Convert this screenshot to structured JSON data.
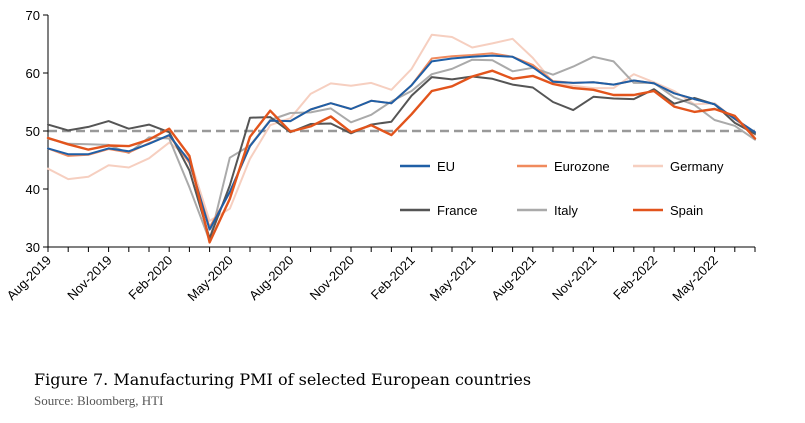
{
  "caption": {
    "title": "Figure 7. Manufacturing PMI of selected European countries",
    "source": "Source: Bloomberg, HTI"
  },
  "chart_data": {
    "type": "line",
    "title": "Manufacturing PMI of selected European countries",
    "xlabel": "",
    "ylabel": "",
    "ylim": [
      30,
      70
    ],
    "yticks": [
      30,
      40,
      50,
      60,
      70
    ],
    "reference_line": 50,
    "x": [
      "Aug-2019",
      "Sep-2019",
      "Oct-2019",
      "Nov-2019",
      "Dec-2019",
      "Jan-2020",
      "Feb-2020",
      "Mar-2020",
      "Apr-2020",
      "May-2020",
      "Jun-2020",
      "Jul-2020",
      "Aug-2020",
      "Sep-2020",
      "Oct-2020",
      "Nov-2020",
      "Dec-2020",
      "Jan-2021",
      "Feb-2021",
      "Mar-2021",
      "Apr-2021",
      "May-2021",
      "Jun-2021",
      "Jul-2021",
      "Aug-2021",
      "Sep-2021",
      "Oct-2021",
      "Nov-2021",
      "Dec-2021",
      "Jan-2022",
      "Feb-2022",
      "Mar-2022",
      "Apr-2022",
      "May-2022",
      "Jun-2022",
      "Jul-2022"
    ],
    "x_tick_labels": [
      "Aug-2019",
      "Nov-2019",
      "Feb-2020",
      "May-2020",
      "Aug-2020",
      "Nov-2020",
      "Feb-2021",
      "May-2021",
      "Aug-2021",
      "Nov-2021",
      "Feb-2022",
      "May-2022"
    ],
    "legend_position": "lower-right",
    "series": [
      {
        "name": "EU",
        "color": "#1f5fa6",
        "values": [
          47.0,
          46.0,
          46.0,
          47.0,
          46.5,
          47.8,
          49.3,
          44.8,
          33.0,
          39.5,
          47.4,
          51.8,
          51.7,
          53.7,
          54.8,
          53.8,
          55.2,
          54.8,
          57.9,
          62.0,
          62.5,
          62.8,
          63.0,
          62.8,
          61.0,
          58.5,
          58.3,
          58.4,
          58.0,
          58.7,
          58.2,
          56.5,
          55.5,
          54.6,
          52.1,
          49.8
        ]
      },
      {
        "name": "Eurozone",
        "color": "#f08a5d",
        "values": [
          47.0,
          45.7,
          45.9,
          46.9,
          46.3,
          47.9,
          49.2,
          44.5,
          33.4,
          39.4,
          47.4,
          51.8,
          51.7,
          53.7,
          54.8,
          53.8,
          55.2,
          54.8,
          57.9,
          62.5,
          62.9,
          63.1,
          63.4,
          62.8,
          61.4,
          58.6,
          58.3,
          58.4,
          58.0,
          58.7,
          58.2,
          56.5,
          55.5,
          54.6,
          52.1,
          49.8
        ]
      },
      {
        "name": "Germany",
        "color": "#f6cfc0",
        "values": [
          43.5,
          41.7,
          42.1,
          44.1,
          43.7,
          45.3,
          48.0,
          45.4,
          34.5,
          36.6,
          45.2,
          51.0,
          52.2,
          56.4,
          58.2,
          57.8,
          58.3,
          57.1,
          60.7,
          66.6,
          66.2,
          64.4,
          65.1,
          65.9,
          62.6,
          58.4,
          57.8,
          57.4,
          57.4,
          59.8,
          58.4,
          56.9,
          54.6,
          54.8,
          52.0,
          49.3
        ]
      },
      {
        "name": "France",
        "color": "#555555",
        "values": [
          51.1,
          50.1,
          50.7,
          51.7,
          50.4,
          51.1,
          49.8,
          43.2,
          31.5,
          40.6,
          52.3,
          52.4,
          49.8,
          51.2,
          51.3,
          49.6,
          51.1,
          51.6,
          56.1,
          59.3,
          58.9,
          59.4,
          59.0,
          58.0,
          57.5,
          55.0,
          53.6,
          55.9,
          55.6,
          55.5,
          57.2,
          54.7,
          55.7,
          54.6,
          51.4,
          49.5
        ]
      },
      {
        "name": "Italy",
        "color": "#aaaaaa",
        "values": [
          48.7,
          47.8,
          47.7,
          47.6,
          46.2,
          48.9,
          48.7,
          40.3,
          31.1,
          45.4,
          47.5,
          51.9,
          53.1,
          53.2,
          53.9,
          51.5,
          52.8,
          55.1,
          56.9,
          59.8,
          60.7,
          62.3,
          62.2,
          60.3,
          60.9,
          59.7,
          61.1,
          62.8,
          62.0,
          58.3,
          58.3,
          55.8,
          54.5,
          51.9,
          50.9,
          48.5
        ]
      },
      {
        "name": "Spain",
        "color": "#e2541c",
        "values": [
          48.8,
          47.7,
          46.8,
          47.5,
          47.4,
          48.5,
          50.4,
          45.7,
          30.8,
          38.3,
          49.0,
          53.5,
          49.9,
          50.8,
          52.5,
          49.8,
          51.0,
          49.3,
          52.9,
          56.9,
          57.7,
          59.4,
          60.4,
          59.0,
          59.5,
          58.1,
          57.4,
          57.1,
          56.2,
          56.2,
          56.9,
          54.2,
          53.3,
          53.8,
          52.6,
          48.7
        ]
      }
    ]
  }
}
